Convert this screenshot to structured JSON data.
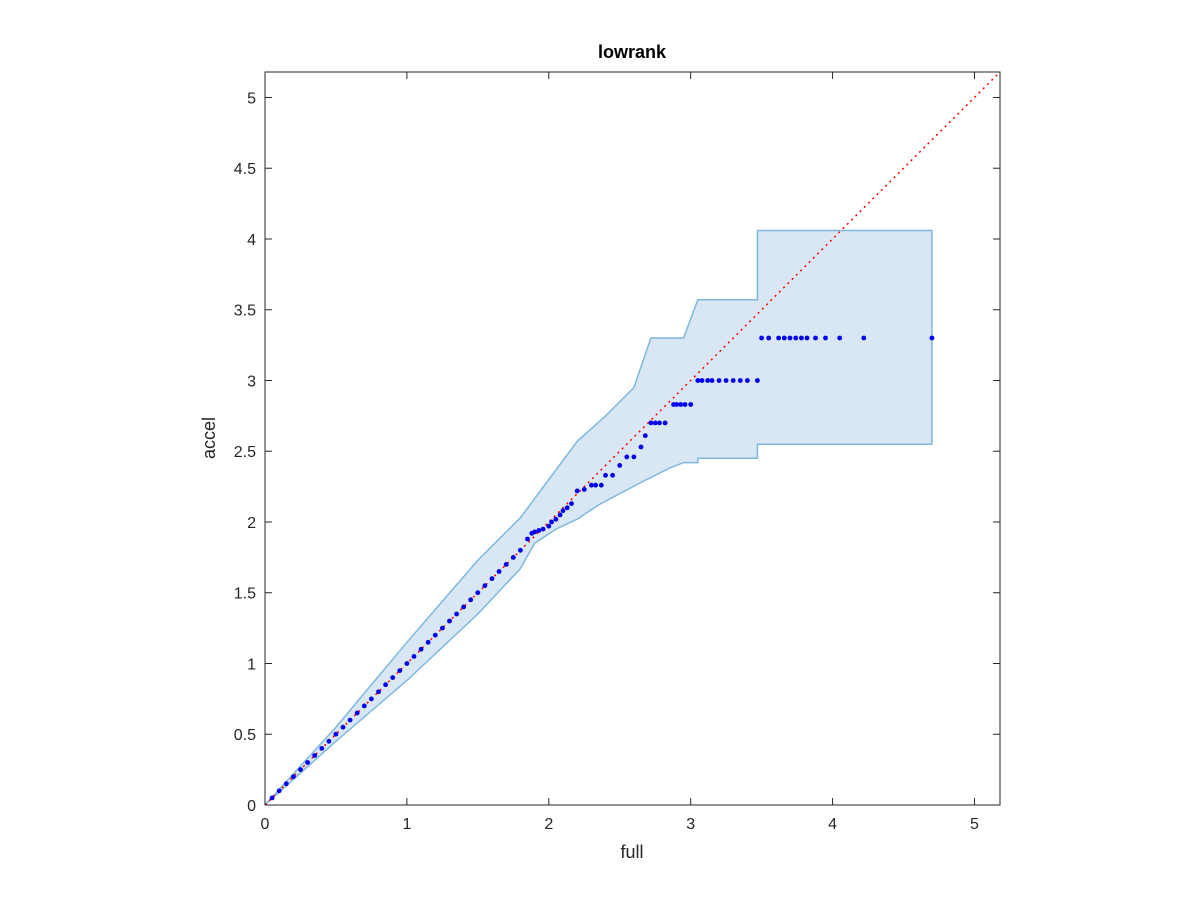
{
  "chart_data": {
    "type": "scatter",
    "title": "lowrank",
    "xlabel": "full",
    "ylabel": "accel",
    "xlim": [
      0,
      5.18
    ],
    "ylim": [
      0,
      5.18
    ],
    "xticks": [
      0,
      1,
      2,
      3,
      4,
      5
    ],
    "xtick_labels": [
      "0",
      "1",
      "2",
      "3",
      "4",
      "5"
    ],
    "yticks": [
      0,
      0.5,
      1,
      1.5,
      2,
      2.5,
      3,
      3.5,
      4,
      4.5,
      5
    ],
    "ytick_labels": [
      "0",
      "0.5",
      "1",
      "1.5",
      "2",
      "2.5",
      "3",
      "3.5",
      "4",
      "4.5",
      "5"
    ],
    "grid": false,
    "reference_line": {
      "from": [
        0,
        0
      ],
      "to": [
        5.18,
        5.18
      ],
      "style": "dotted",
      "color": "#ff0000"
    },
    "band": {
      "upper": [
        [
          0,
          0
        ],
        [
          0.5,
          0.55
        ],
        [
          1,
          1.15
        ],
        [
          1.5,
          1.73
        ],
        [
          1.8,
          2.03
        ],
        [
          2,
          2.3
        ],
        [
          2.2,
          2.57
        ],
        [
          2.4,
          2.75
        ],
        [
          2.6,
          2.95
        ],
        [
          2.72,
          3.3
        ],
        [
          2.95,
          3.3
        ],
        [
          3.05,
          3.57
        ],
        [
          3.47,
          3.57
        ],
        [
          3.47,
          4.06
        ],
        [
          4.7,
          4.06
        ]
      ],
      "lower": [
        [
          4.7,
          2.55
        ],
        [
          3.47,
          2.55
        ],
        [
          3.47,
          2.45
        ],
        [
          3.05,
          2.45
        ],
        [
          3.05,
          2.42
        ],
        [
          2.95,
          2.42
        ],
        [
          2.85,
          2.38
        ],
        [
          2.65,
          2.28
        ],
        [
          2.5,
          2.2
        ],
        [
          2.35,
          2.12
        ],
        [
          2.2,
          2.02
        ],
        [
          2.05,
          1.95
        ],
        [
          1.9,
          1.85
        ],
        [
          1.8,
          1.67
        ],
        [
          1.5,
          1.35
        ],
        [
          1,
          0.88
        ],
        [
          0.5,
          0.45
        ],
        [
          0,
          0
        ]
      ],
      "fill_color": "#d8e7f3",
      "edge_color": "#7fb8dd"
    },
    "series": [
      {
        "marker_color": "#0000ee",
        "points": [
          [
            0.05,
            0.05
          ],
          [
            0.1,
            0.1
          ],
          [
            0.15,
            0.15
          ],
          [
            0.2,
            0.2
          ],
          [
            0.25,
            0.25
          ],
          [
            0.3,
            0.3
          ],
          [
            0.35,
            0.35
          ],
          [
            0.4,
            0.4
          ],
          [
            0.45,
            0.45
          ],
          [
            0.5,
            0.5
          ],
          [
            0.55,
            0.55
          ],
          [
            0.6,
            0.6
          ],
          [
            0.65,
            0.65
          ],
          [
            0.7,
            0.7
          ],
          [
            0.75,
            0.75
          ],
          [
            0.8,
            0.8
          ],
          [
            0.85,
            0.85
          ],
          [
            0.9,
            0.9
          ],
          [
            0.95,
            0.95
          ],
          [
            1.0,
            1.0
          ],
          [
            1.05,
            1.05
          ],
          [
            1.1,
            1.1
          ],
          [
            1.15,
            1.15
          ],
          [
            1.2,
            1.2
          ],
          [
            1.25,
            1.25
          ],
          [
            1.3,
            1.3
          ],
          [
            1.35,
            1.35
          ],
          [
            1.4,
            1.4
          ],
          [
            1.45,
            1.45
          ],
          [
            1.5,
            1.5
          ],
          [
            1.55,
            1.55
          ],
          [
            1.6,
            1.6
          ],
          [
            1.65,
            1.65
          ],
          [
            1.7,
            1.7
          ],
          [
            1.75,
            1.75
          ],
          [
            1.8,
            1.8
          ],
          [
            1.85,
            1.88
          ],
          [
            1.88,
            1.92
          ],
          [
            1.9,
            1.93
          ],
          [
            1.93,
            1.94
          ],
          [
            1.96,
            1.95
          ],
          [
            2.0,
            1.97
          ],
          [
            2.02,
            2.0
          ],
          [
            2.05,
            2.02
          ],
          [
            2.08,
            2.05
          ],
          [
            2.1,
            2.08
          ],
          [
            2.13,
            2.1
          ],
          [
            2.16,
            2.13
          ],
          [
            2.2,
            2.22
          ],
          [
            2.25,
            2.23
          ],
          [
            2.3,
            2.26
          ],
          [
            2.33,
            2.26
          ],
          [
            2.37,
            2.26
          ],
          [
            2.4,
            2.33
          ],
          [
            2.45,
            2.33
          ],
          [
            2.5,
            2.4
          ],
          [
            2.55,
            2.46
          ],
          [
            2.6,
            2.46
          ],
          [
            2.65,
            2.53
          ],
          [
            2.68,
            2.61
          ],
          [
            2.72,
            2.7
          ],
          [
            2.75,
            2.7
          ],
          [
            2.78,
            2.7
          ],
          [
            2.82,
            2.7
          ],
          [
            2.88,
            2.83
          ],
          [
            2.9,
            2.83
          ],
          [
            2.93,
            2.83
          ],
          [
            2.96,
            2.83
          ],
          [
            3.0,
            2.83
          ],
          [
            3.05,
            3.0
          ],
          [
            3.08,
            3.0
          ],
          [
            3.12,
            3.0
          ],
          [
            3.15,
            3.0
          ],
          [
            3.2,
            3.0
          ],
          [
            3.25,
            3.0
          ],
          [
            3.3,
            3.0
          ],
          [
            3.35,
            3.0
          ],
          [
            3.4,
            3.0
          ],
          [
            3.47,
            3.0
          ],
          [
            3.5,
            3.3
          ],
          [
            3.55,
            3.3
          ],
          [
            3.62,
            3.3
          ],
          [
            3.66,
            3.3
          ],
          [
            3.7,
            3.3
          ],
          [
            3.74,
            3.3
          ],
          [
            3.78,
            3.3
          ],
          [
            3.82,
            3.3
          ],
          [
            3.88,
            3.3
          ],
          [
            3.95,
            3.3
          ],
          [
            4.05,
            3.3
          ],
          [
            4.22,
            3.3
          ],
          [
            4.7,
            3.3
          ]
        ]
      }
    ]
  }
}
